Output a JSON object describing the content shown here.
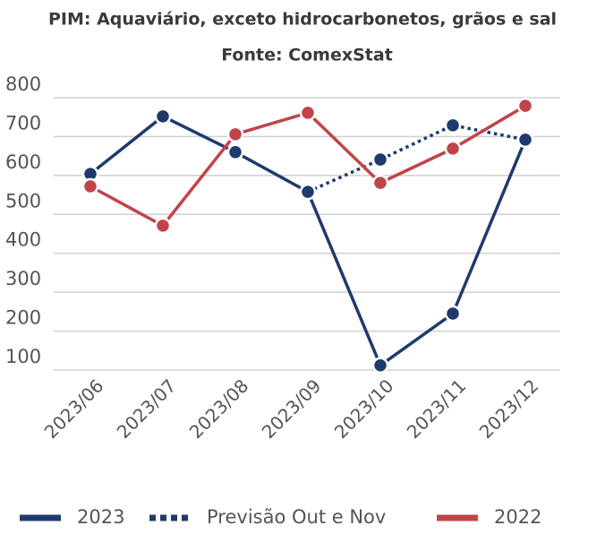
{
  "chart_data": {
    "type": "line",
    "title": "PIM: Aquaviário, exceto hidrocarbonetos, grãos e sal",
    "subtitle": "Fonte: ComexStat",
    "categories": [
      "2023/06",
      "2023/07",
      "2023/08",
      "2023/09",
      "2023/10",
      "2023/11",
      "2023/12"
    ],
    "series": [
      {
        "name": "2023",
        "color": "#1f3a6e",
        "dash": "solid",
        "values": [
          604,
          752,
          660,
          558,
          112,
          245,
          692
        ]
      },
      {
        "name": "Previsão Out e Nov",
        "color": "#1f3a6e",
        "dash": "dotted",
        "values": [
          null,
          null,
          null,
          558,
          641,
          729,
          692
        ]
      },
      {
        "name": "2022",
        "color": "#c0444a",
        "dash": "solid",
        "values": [
          572,
          471,
          706,
          761,
          581,
          669,
          779
        ]
      }
    ],
    "ylim": [
      100,
      800
    ],
    "yticks": [
      100,
      200,
      300,
      400,
      500,
      600,
      700,
      800
    ],
    "grid": true,
    "legend": "bottom"
  }
}
